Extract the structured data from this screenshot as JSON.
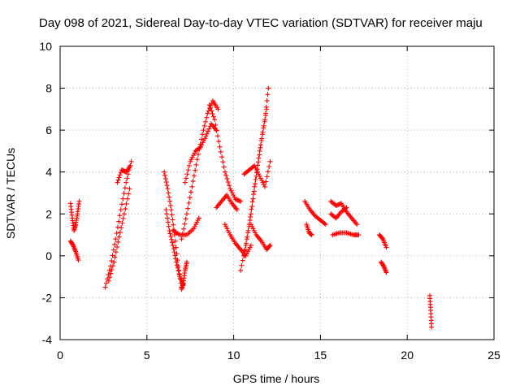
{
  "chart_data": {
    "type": "scatter",
    "title": "Day 098 of 2021, Sidereal Day-to-day VTEC variation (SDTVAR) for receiver maju",
    "xlabel": "GPS time / hours",
    "ylabel": "SDTVAR / TECUs",
    "xlim": [
      0,
      25
    ],
    "ylim": [
      -4,
      10
    ],
    "xticks": [
      0,
      5,
      10,
      15,
      20,
      25
    ],
    "yticks": [
      -4,
      -2,
      0,
      2,
      4,
      6,
      8,
      10
    ],
    "grid": true,
    "marker": "+",
    "marker_color": "#ff0000",
    "series": [
      {
        "name": "SDTVAR",
        "segments": [
          {
            "x": [
              0.6,
              0.7,
              0.8,
              0.9,
              1.0,
              1.1
            ],
            "y": [
              2.5,
              1.8,
              1.2,
              1.5,
              2.0,
              2.6
            ]
          },
          {
            "x": [
              0.6,
              0.75,
              0.9,
              1.05
            ],
            "y": [
              0.7,
              0.5,
              0.2,
              -0.2
            ]
          },
          {
            "x": [
              2.6,
              2.9,
              3.2,
              3.5,
              3.8,
              4.1
            ],
            "y": [
              -1.5,
              -0.5,
              0.8,
              2.2,
              3.5,
              4.5
            ]
          },
          {
            "x": [
              2.8,
              3.1,
              3.4,
              3.7,
              4.0
            ],
            "y": [
              -1.2,
              -0.3,
              0.9,
              2.0,
              3.2
            ]
          },
          {
            "x": [
              3.3,
              3.55,
              3.8,
              4.05
            ],
            "y": [
              3.5,
              4.1,
              4.0,
              4.3
            ]
          },
          {
            "x": [
              6.0,
              6.2,
              6.4,
              6.6,
              6.8,
              7.0
            ],
            "y": [
              4.0,
              3.2,
              2.2,
              1.0,
              -0.5,
              -1.5
            ]
          },
          {
            "x": [
              6.1,
              6.3,
              6.5,
              6.7,
              6.9,
              7.1
            ],
            "y": [
              2.2,
              1.2,
              0.5,
              -0.3,
              -1.0,
              -1.4
            ]
          },
          {
            "x": [
              7.0,
              7.1,
              7.2,
              7.3
            ],
            "y": [
              -1.6,
              -1.3,
              -0.7,
              -0.3
            ]
          },
          {
            "x": [
              7.0,
              7.3,
              7.6,
              7.9,
              8.2,
              8.5,
              8.8,
              9.1
            ],
            "y": [
              0.8,
              2.0,
              3.3,
              4.6,
              5.8,
              6.8,
              7.4,
              7.0
            ]
          },
          {
            "x": [
              7.2,
              7.5,
              7.8,
              8.1,
              8.4,
              8.7,
              9.0
            ],
            "y": [
              3.5,
              4.5,
              5.0,
              5.2,
              5.7,
              6.3,
              6.0
            ]
          },
          {
            "x": [
              6.5,
              6.9,
              7.3,
              7.7,
              8.0
            ],
            "y": [
              1.2,
              1.0,
              1.0,
              1.3,
              1.8
            ]
          },
          {
            "x": [
              8.6,
              8.9,
              9.2,
              9.5,
              9.8,
              10.1,
              10.4
            ],
            "y": [
              7.2,
              6.5,
              5.2,
              4.0,
              3.2,
              2.7,
              2.6
            ]
          },
          {
            "x": [
              9.0,
              9.3,
              9.6,
              9.9,
              10.2
            ],
            "y": [
              2.3,
              2.6,
              2.9,
              2.5,
              2.2
            ]
          },
          {
            "x": [
              9.5,
              9.8,
              10.1,
              10.4,
              10.7,
              11.0
            ],
            "y": [
              1.5,
              1.0,
              0.6,
              0.3,
              0.0,
              0.5
            ]
          },
          {
            "x": [
              10.4,
              10.7,
              11.0,
              11.3,
              11.6,
              11.9
            ],
            "y": [
              -0.7,
              0.5,
              2.0,
              3.8,
              5.5,
              7.0
            ]
          },
          {
            "x": [
              10.6,
              10.9,
              11.2,
              11.5,
              11.8,
              12.0
            ],
            "y": [
              0.0,
              1.5,
              3.3,
              5.0,
              6.5,
              8.0
            ]
          },
          {
            "x": [
              10.6,
              10.9,
              11.2,
              11.5,
              11.8,
              12.1
            ],
            "y": [
              3.9,
              4.1,
              4.3,
              3.8,
              3.3,
              4.5
            ]
          },
          {
            "x": [
              11.0,
              11.3,
              11.6,
              11.9,
              12.1
            ],
            "y": [
              1.5,
              1.0,
              0.7,
              0.3,
              0.5
            ]
          },
          {
            "x": [
              14.1,
              14.4,
              14.7,
              15.0,
              15.3
            ],
            "y": [
              2.6,
              2.2,
              1.9,
              1.7,
              1.5
            ]
          },
          {
            "x": [
              14.2,
              14.35,
              14.5
            ],
            "y": [
              1.5,
              1.1,
              1.0
            ]
          },
          {
            "x": [
              15.6,
              15.9,
              16.2,
              16.5,
              16.8,
              17.1
            ],
            "y": [
              2.6,
              2.4,
              2.5,
              2.1,
              1.8,
              1.5
            ]
          },
          {
            "x": [
              15.6,
              15.9,
              16.2,
              16.5
            ],
            "y": [
              2.0,
              1.8,
              2.1,
              2.3
            ]
          },
          {
            "x": [
              15.7,
              16.1,
              16.5,
              16.9,
              17.2
            ],
            "y": [
              1.0,
              1.1,
              1.1,
              1.0,
              1.0
            ]
          },
          {
            "x": [
              18.4,
              18.6,
              18.8
            ],
            "y": [
              1.0,
              0.8,
              0.4
            ]
          },
          {
            "x": [
              18.5,
              18.65,
              18.8
            ],
            "y": [
              -0.3,
              -0.5,
              -0.8
            ]
          },
          {
            "x": [
              21.3,
              21.35,
              21.4
            ],
            "y": [
              -1.9,
              -2.6,
              -3.4
            ]
          }
        ]
      }
    ]
  }
}
